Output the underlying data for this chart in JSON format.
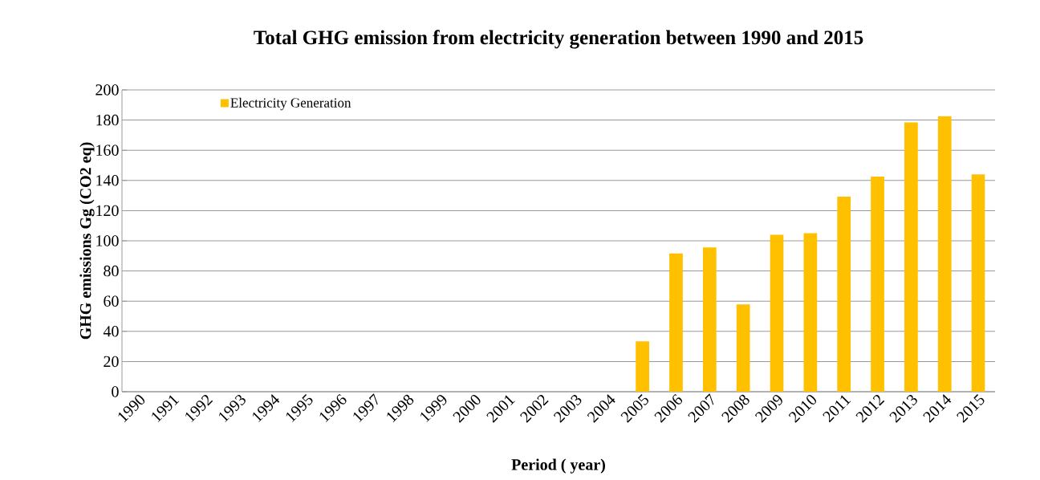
{
  "chart_data": {
    "type": "bar",
    "title": "Total GHG emission from electricity generation between 1990 and 2015",
    "xlabel": "Period ( year)",
    "ylabel": "GHG emissions Gg (CO2 eq)",
    "categories": [
      "1990",
      "1991",
      "1992",
      "1993",
      "1994",
      "1995",
      "1996",
      "1997",
      "1998",
      "1999",
      "2000",
      "2001",
      "2002",
      "2003",
      "2004",
      "2005",
      "2006",
      "2007",
      "2008",
      "2009",
      "2010",
      "2011",
      "2012",
      "2013",
      "2014",
      "2015"
    ],
    "series": [
      {
        "name": "Electricity Generation",
        "color": "#ffc000",
        "values": [
          null,
          null,
          null,
          null,
          null,
          null,
          null,
          null,
          null,
          null,
          null,
          null,
          null,
          null,
          null,
          33.4,
          91.6,
          95.6,
          57.8,
          104,
          105.1,
          129.2,
          142.6,
          178.5,
          182.6,
          144
        ]
      }
    ],
    "ylim": [
      0,
      200
    ],
    "yticks": [
      0,
      20,
      40,
      60,
      80,
      100,
      120,
      140,
      160,
      180,
      200
    ],
    "grid": "y",
    "legend": "top left"
  }
}
